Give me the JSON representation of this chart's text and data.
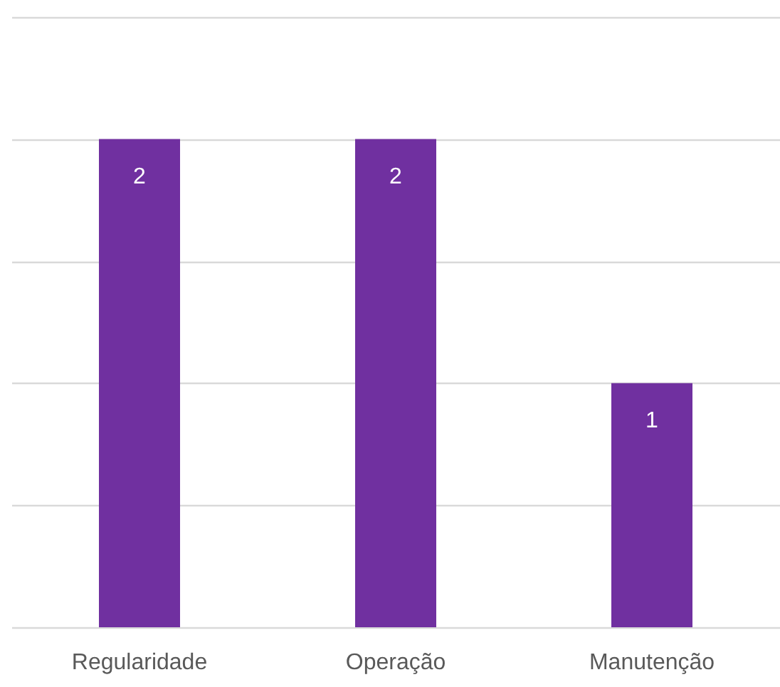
{
  "chart_data": {
    "type": "bar",
    "categories": [
      "Regularidade",
      "Operação",
      "Manutenção"
    ],
    "values": [
      2,
      2,
      1
    ],
    "color": "#7030a0",
    "ylim": [
      0,
      2.5
    ],
    "yticks": [
      {
        "value": 0,
        "label": null
      },
      {
        "value": 0.5,
        "label": null
      },
      {
        "value": 1,
        "label": null
      },
      {
        "value": 1.5,
        "label": null
      },
      {
        "value": 2,
        "label": null
      },
      {
        "value": 2.5,
        "label": null
      }
    ],
    "grid": "y",
    "data_labels": true,
    "tick_labels": "x"
  }
}
